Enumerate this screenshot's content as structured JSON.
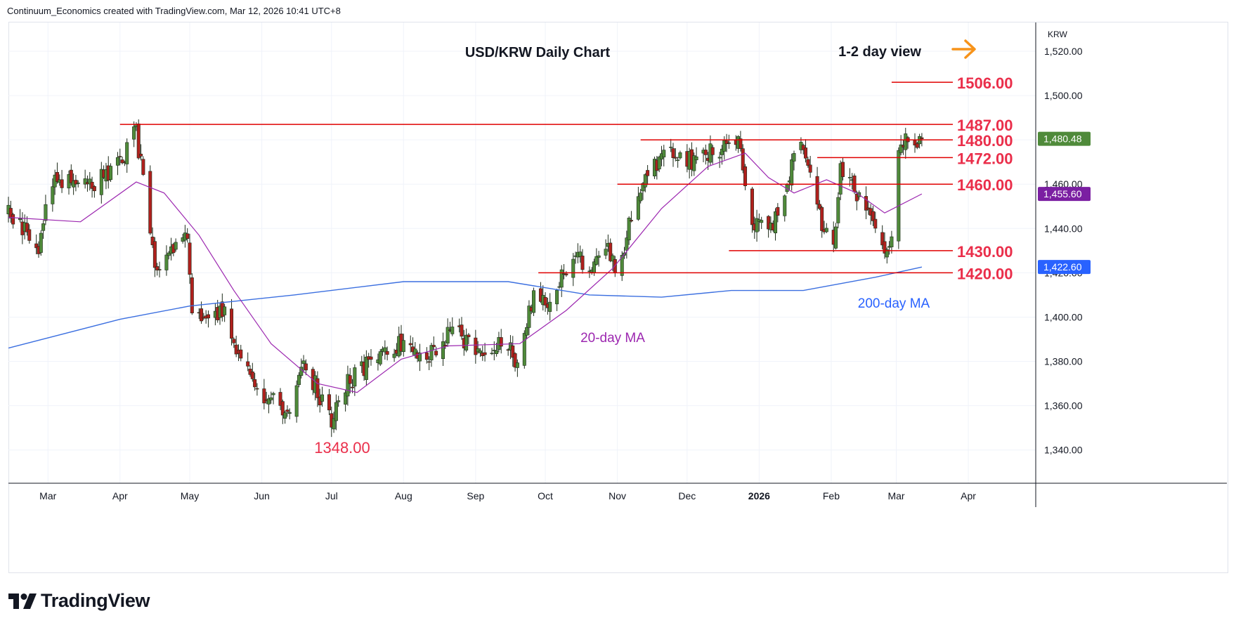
{
  "header": "Continuum_Economics created with TradingView.com, Mar 12, 2026 10:41 UTC+8",
  "brand": "TradingView",
  "chart_data": {
    "type": "candlestick",
    "title": "USD/KRW Daily Chart",
    "view_label": "1-2 day view",
    "view_arrow": "right",
    "currency": "KRW",
    "ylim": [
      1325,
      1533
    ],
    "y_ticks": [
      "1,340.00",
      "1,360.00",
      "1,380.00",
      "1,400.00",
      "1,420.00",
      "1,440.00",
      "1,460.00",
      "1,480.00",
      "1,500.00",
      "1,520.00"
    ],
    "x_labels": [
      "Mar",
      "Apr",
      "May",
      "Jun",
      "Jul",
      "Aug",
      "Sep",
      "Oct",
      "Nov",
      "Dec",
      "2026",
      "Feb",
      "Mar",
      "Apr"
    ],
    "last_price": "1,480.48",
    "ma20_value": "1,455.60",
    "ma200_value": "1,422.60",
    "levels": [
      {
        "label": "1506.00",
        "value": 1506,
        "from": "2026-02-27"
      },
      {
        "label": "1487.00",
        "value": 1487,
        "from": "2025-04-01"
      },
      {
        "label": "1480.00",
        "value": 1480,
        "from": "2025-11-11"
      },
      {
        "label": "1472.00",
        "value": 1472,
        "from": "2026-01-26"
      },
      {
        "label": "1460.00",
        "value": 1460,
        "from": "2025-11-01"
      },
      {
        "label": "1430.00",
        "value": 1430,
        "from": "2025-12-19"
      },
      {
        "label": "1420.00",
        "value": 1420,
        "from": "2025-09-28"
      }
    ],
    "annotations": {
      "low": "1348.00",
      "ma20": "20-day MA",
      "ma200": "200-day MA"
    },
    "anchors": [
      [
        "2025-02-12",
        1446
      ],
      [
        "2025-02-25",
        1432
      ],
      [
        "2025-03-03",
        1462
      ],
      [
        "2025-03-20",
        1460
      ],
      [
        "2025-04-01",
        1470
      ],
      [
        "2025-04-08",
        1484
      ],
      [
        "2025-04-16",
        1422
      ],
      [
        "2025-04-30",
        1436
      ],
      [
        "2025-05-02",
        1402
      ],
      [
        "2025-05-09",
        1396
      ],
      [
        "2025-05-15",
        1404
      ],
      [
        "2025-05-23",
        1381
      ],
      [
        "2025-06-03",
        1364
      ],
      [
        "2025-06-12",
        1357
      ],
      [
        "2025-06-20",
        1379
      ],
      [
        "2025-07-01",
        1352
      ],
      [
        "2025-07-08",
        1370
      ],
      [
        "2025-07-23",
        1386
      ],
      [
        "2025-08-01",
        1388
      ],
      [
        "2025-08-12",
        1384
      ],
      [
        "2025-08-22",
        1393
      ],
      [
        "2025-09-03",
        1386
      ],
      [
        "2025-09-15",
        1387
      ],
      [
        "2025-09-19",
        1378
      ],
      [
        "2025-09-26",
        1410
      ],
      [
        "2025-10-02",
        1404
      ],
      [
        "2025-10-13",
        1430
      ],
      [
        "2025-10-20",
        1419
      ],
      [
        "2025-10-27",
        1434
      ],
      [
        "2025-11-01",
        1421
      ],
      [
        "2025-11-10",
        1458
      ],
      [
        "2025-11-21",
        1473
      ],
      [
        "2025-12-05",
        1470
      ],
      [
        "2025-12-23",
        1482
      ],
      [
        "2025-12-29",
        1444
      ],
      [
        "2026-01-07",
        1440
      ],
      [
        "2026-01-16",
        1472
      ],
      [
        "2026-01-20",
        1478
      ],
      [
        "2026-01-26",
        1447
      ],
      [
        "2026-02-02",
        1430
      ],
      [
        "2026-02-05",
        1465
      ],
      [
        "2026-02-13",
        1455
      ],
      [
        "2026-02-20",
        1442
      ],
      [
        "2026-02-26",
        1428
      ],
      [
        "2026-03-02",
        1476
      ],
      [
        "2026-03-05",
        1482
      ],
      [
        "2026-03-10",
        1478
      ],
      [
        "2026-03-12",
        1480.48
      ]
    ],
    "ma20_path": [
      [
        "2025-02-12",
        1445
      ],
      [
        "2025-03-15",
        1443
      ],
      [
        "2025-04-08",
        1461
      ],
      [
        "2025-04-20",
        1456
      ],
      [
        "2025-05-05",
        1437
      ],
      [
        "2025-05-20",
        1412
      ],
      [
        "2025-06-05",
        1388
      ],
      [
        "2025-06-25",
        1370
      ],
      [
        "2025-07-12",
        1366
      ],
      [
        "2025-07-31",
        1381
      ],
      [
        "2025-08-20",
        1387
      ],
      [
        "2025-09-20",
        1388
      ],
      [
        "2025-10-10",
        1403
      ],
      [
        "2025-10-30",
        1422
      ],
      [
        "2025-11-20",
        1449
      ],
      [
        "2025-12-10",
        1468
      ],
      [
        "2025-12-26",
        1474
      ],
      [
        "2026-01-05",
        1463
      ],
      [
        "2026-01-16",
        1456
      ],
      [
        "2026-01-30",
        1462
      ],
      [
        "2026-02-12",
        1456
      ],
      [
        "2026-02-24",
        1447
      ],
      [
        "2026-03-12",
        1455.6
      ]
    ],
    "ma200_path": [
      [
        "2025-02-12",
        1386
      ],
      [
        "2025-04-01",
        1399
      ],
      [
        "2025-05-01",
        1405
      ],
      [
        "2025-06-15",
        1410
      ],
      [
        "2025-08-01",
        1416
      ],
      [
        "2025-09-15",
        1416
      ],
      [
        "2025-10-20",
        1410
      ],
      [
        "2025-11-20",
        1409
      ],
      [
        "2025-12-20",
        1412
      ],
      [
        "2026-01-20",
        1412
      ],
      [
        "2026-02-20",
        1418
      ],
      [
        "2026-03-12",
        1422.6
      ]
    ]
  },
  "colors": {
    "up": "#4f8a3a",
    "down": "#b0201d",
    "level": "#e00000",
    "level_label": "#ea2e4a",
    "ma20": "#9c27b0",
    "ma200": "#3b6fe0",
    "ma200_label": "#2962ff",
    "arrow": "#f7931a",
    "last_price_tag": "#4f8a3a",
    "ma20_tag": "#7b1fa2",
    "ma200_tag": "#2962ff",
    "grid": "#f0f3fa",
    "axis_text": "#131722"
  }
}
